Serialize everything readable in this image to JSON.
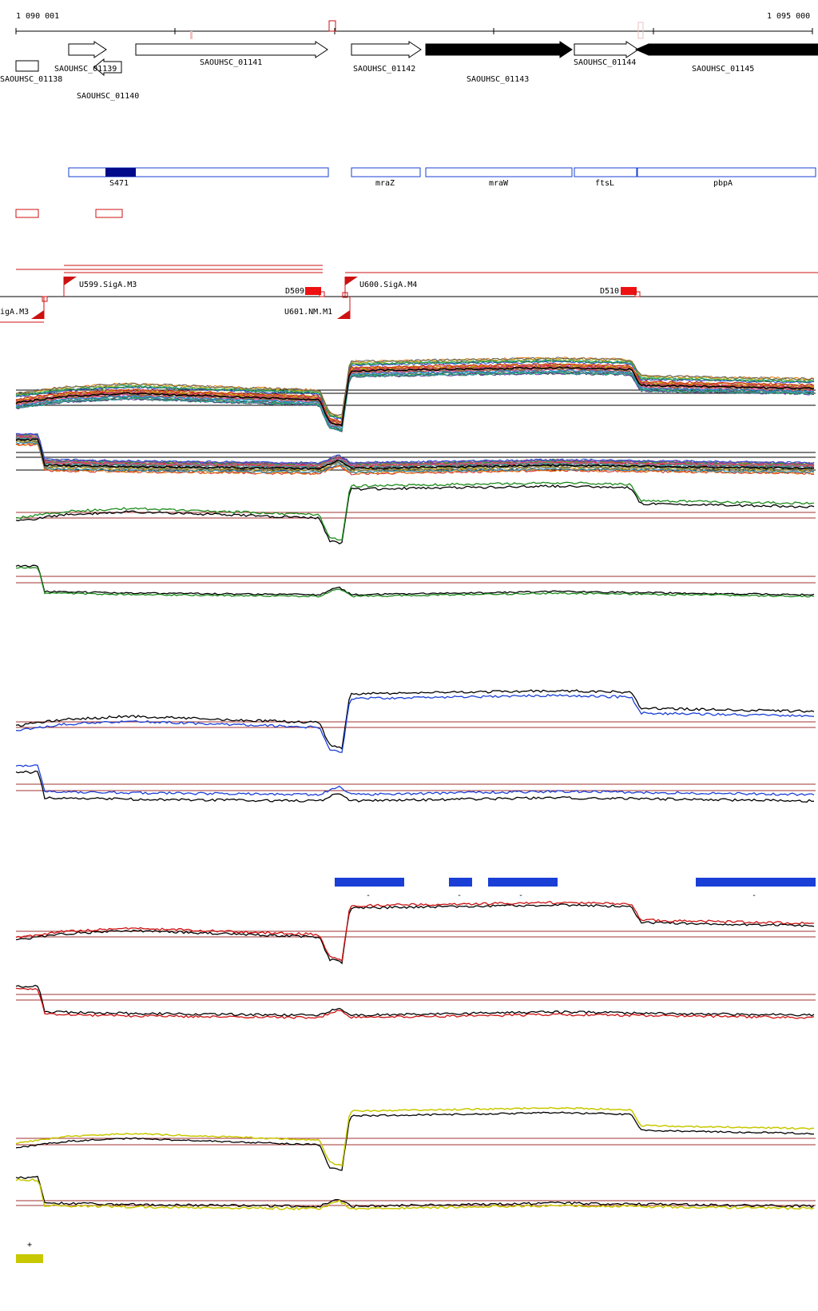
{
  "ruler": {
    "start_label": "1 090 001",
    "end_label": "1 095 000"
  },
  "genes": [
    {
      "id": "SAOUHSC_01138",
      "label": "SAOUHSC_01138",
      "filled": false
    },
    {
      "id": "SAOUHSC_01139",
      "label": "SAOUHSC_01139",
      "filled": false
    },
    {
      "id": "SAOUHSC_01140",
      "label": "SAOUHSC_01140",
      "filled": false
    },
    {
      "id": "SAOUHSC_01141",
      "label": "SAOUHSC_01141",
      "filled": false
    },
    {
      "id": "SAOUHSC_01142",
      "label": "SAOUHSC_01142",
      "filled": false
    },
    {
      "id": "SAOUHSC_01143",
      "label": "SAOUHSC_01143",
      "filled": true
    },
    {
      "id": "SAOUHSC_01144",
      "label": "SAOUHSC_01144",
      "filled": false
    },
    {
      "id": "SAOUHSC_01145",
      "label": "SAOUHSC_01145",
      "filled": true
    }
  ],
  "regions": [
    {
      "label": "S471"
    },
    {
      "label": "mraZ"
    },
    {
      "label": "mraW"
    },
    {
      "label": "ftsL"
    },
    {
      "label": "pbpA"
    }
  ],
  "promoters": [
    {
      "label": "U599.SigA.M3"
    },
    {
      "label": "U600.SigA.M4"
    },
    {
      "label": "U601.NM.M1"
    },
    {
      "label": "igA.M3"
    }
  ],
  "terminators": [
    {
      "label": "D509"
    },
    {
      "label": "D510"
    }
  ],
  "condition_markers": [
    {
      "label": "-"
    },
    {
      "label": "-"
    },
    {
      "label": "-"
    },
    {
      "label": "-"
    }
  ],
  "legend": {
    "symbol": "+",
    "color": "#c8c800"
  },
  "colors": {
    "blue_track": "#1a3fd6",
    "green_track": "#1a8a1a",
    "red_track": "#cc1111",
    "yellow_track": "#c8c800",
    "reference_line": "#a03030"
  }
}
